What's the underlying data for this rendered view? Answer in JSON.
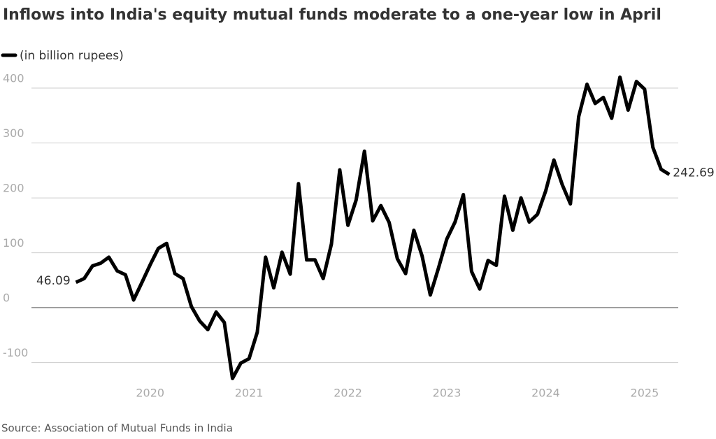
{
  "chart_data": {
    "type": "line",
    "title": "Inflows into India's equity mutual funds moderate to a one-year low in April",
    "source": "Source: Association of Mutual Funds in India",
    "x": [
      2019.25,
      2019.333,
      2019.417,
      2019.5,
      2019.583,
      2019.667,
      2019.75,
      2019.833,
      2019.917,
      2020,
      2020.083,
      2020.167,
      2020.25,
      2020.333,
      2020.417,
      2020.5,
      2020.583,
      2020.667,
      2020.75,
      2020.833,
      2020.917,
      2021,
      2021.083,
      2021.167,
      2021.25,
      2021.333,
      2021.417,
      2021.5,
      2021.583,
      2021.667,
      2021.75,
      2021.833,
      2021.917,
      2022,
      2022.083,
      2022.167,
      2022.25,
      2022.333,
      2022.417,
      2022.5,
      2022.583,
      2022.667,
      2022.75,
      2022.833,
      2022.917,
      2023,
      2023.083,
      2023.167,
      2023.25,
      2023.333,
      2023.417,
      2023.5,
      2023.583,
      2023.667,
      2023.75,
      2023.833,
      2023.917,
      2024,
      2024.083,
      2024.167,
      2024.25,
      2024.333,
      2024.417,
      2024.5,
      2024.583,
      2024.667,
      2024.75,
      2024.833,
      2024.917,
      2025,
      2025.083,
      2025.167,
      2025.25
    ],
    "series": [
      {
        "name": "(in billion rupees)",
        "color": "#000000",
        "values": [
          46.09,
          53,
          76,
          81,
          92,
          67,
          60,
          14,
          46,
          78,
          108,
          117,
          62,
          53,
          2,
          -24,
          -40,
          -8,
          -27,
          -129,
          -101,
          -93,
          -45,
          92,
          36,
          101,
          61,
          226,
          87,
          87,
          53,
          116,
          251,
          150,
          196,
          285,
          158,
          186,
          155,
          89,
          62,
          141,
          94,
          23,
          73,
          125,
          156,
          206,
          66,
          34,
          86,
          77,
          203,
          141,
          200,
          156,
          170,
          213,
          269,
          224,
          189,
          348,
          407,
          372,
          383,
          345,
          420,
          360,
          412,
          398,
          292,
          252,
          242.69
        ]
      }
    ],
    "xlim": [
      2018.8,
      2025.34
    ],
    "xticks": [
      2020,
      2021,
      2022,
      2023,
      2024,
      2025
    ],
    "ylim": [
      -140,
      430
    ],
    "yticks": [
      -100,
      0,
      100,
      200,
      300,
      400
    ],
    "grid": true
  }
}
